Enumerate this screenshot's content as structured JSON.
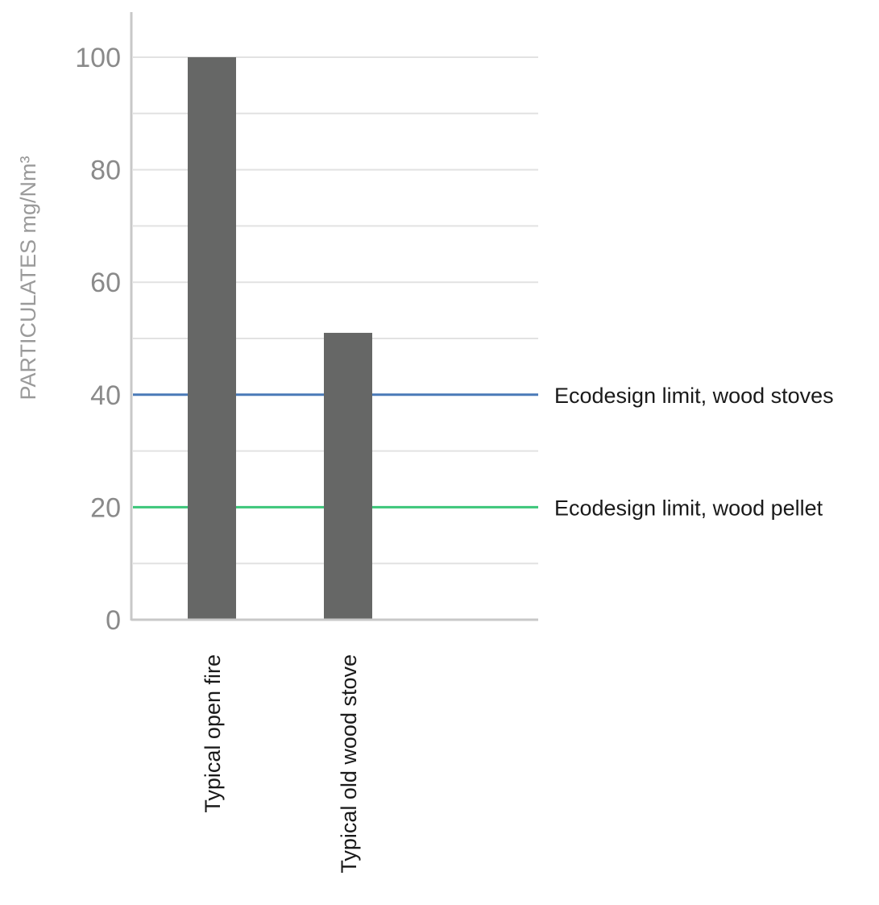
{
  "chart_data": {
    "type": "bar",
    "title": "",
    "xlabel": "",
    "ylabel": "PARTICULATES mg/Nm³",
    "ylim": [
      0,
      110
    ],
    "yticks": [
      0,
      20,
      40,
      60,
      80,
      100
    ],
    "grid": true,
    "categories": [
      "Typical open fire",
      "Typical old wood stove"
    ],
    "values": [
      100,
      51
    ],
    "bar_color": "#666766",
    "reference_lines": [
      {
        "label": "Ecodesign limit, wood stoves",
        "value": 40,
        "color": "#4a7ab8"
      },
      {
        "label": "Ecodesign limit, wood pellet",
        "value": 20,
        "color": "#3cc67a"
      }
    ]
  }
}
